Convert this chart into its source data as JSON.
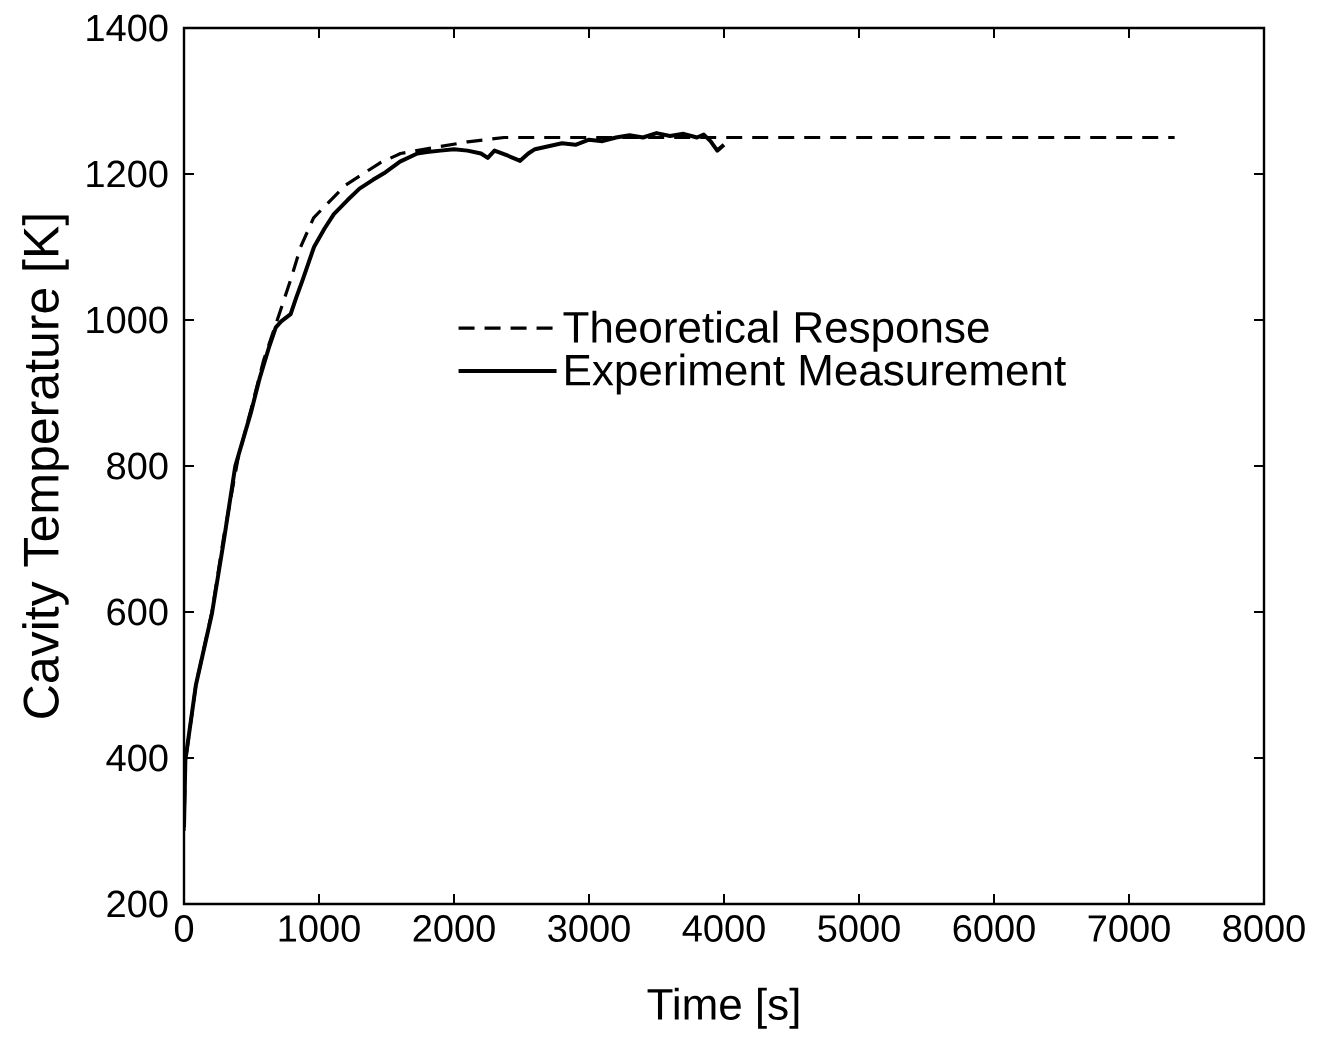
{
  "chart_data": {
    "type": "line",
    "xlabel": "Time [s]",
    "ylabel": "Cavity Temperature [K]",
    "xlim": [
      0,
      8000
    ],
    "ylim": [
      200,
      1400
    ],
    "xticks": [
      0,
      1000,
      2000,
      3000,
      4000,
      5000,
      6000,
      7000,
      8000
    ],
    "yticks": [
      200,
      400,
      600,
      800,
      1000,
      1200,
      1400
    ],
    "legend": "top",
    "marker": "none",
    "series": [
      {
        "name": "Theoretical Response",
        "color": "#000000",
        "line_style": "dashed",
        "x": [
          0,
          10,
          88,
          207,
          296,
          400,
          500,
          590,
          691,
          790,
          864,
          960,
          1086,
          1200,
          1333,
          1450,
          1604,
          1876,
          2100,
          2370,
          3000,
          7338
        ],
        "values": [
          300,
          395,
          500,
          600,
          705,
          810,
          880,
          945,
          1000,
          1055,
          1100,
          1140,
          1164,
          1185,
          1201,
          1215,
          1228,
          1237,
          1244,
          1250,
          1250,
          1250
        ]
      },
      {
        "name": "Experiment Measurement",
        "color": "#000000",
        "line_style": "solid",
        "x": [
          0,
          10,
          88,
          207,
          296,
          380,
          494,
          560,
          632,
          680,
          720,
          790,
          830,
          879,
          963,
          1040,
          1110,
          1210,
          1300,
          1400,
          1481,
          1600,
          1728,
          1800,
          1900,
          2000,
          2100,
          2200,
          2250,
          2300,
          2400,
          2490,
          2550,
          2600,
          2700,
          2800,
          2900,
          3000,
          3100,
          3200,
          3300,
          3400,
          3500,
          3600,
          3700,
          3800,
          3850,
          3900,
          3950,
          4000
        ],
        "values": [
          305,
          397,
          500,
          598,
          699,
          800,
          872,
          920,
          964,
          990,
          998,
          1008,
          1030,
          1055,
          1100,
          1125,
          1145,
          1164,
          1180,
          1192,
          1201,
          1217,
          1228,
          1230,
          1232,
          1234,
          1232,
          1228,
          1222,
          1232,
          1225,
          1218,
          1228,
          1234,
          1238,
          1242,
          1240,
          1247,
          1245,
          1250,
          1253,
          1250,
          1256,
          1252,
          1255,
          1250,
          1254,
          1245,
          1232,
          1240
        ]
      }
    ]
  }
}
